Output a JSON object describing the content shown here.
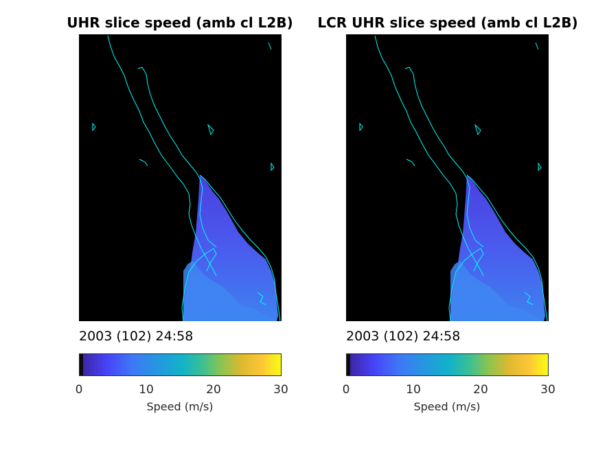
{
  "panels": [
    {
      "title": "UHR slice speed (amb cl L2B)",
      "timestamp": "2003 (102) 24:58",
      "colorbar": {
        "label": "Speed (m/s)",
        "ticks": [
          "0",
          "10",
          "20",
          "30"
        ]
      }
    },
    {
      "title": "LCR UHR slice speed (amb cl L2B)",
      "timestamp": "2003 (102) 24:58",
      "colorbar": {
        "label": "Speed (m/s)",
        "ticks": [
          "0",
          "10",
          "20",
          "30"
        ]
      }
    }
  ],
  "colors": {
    "background": "#000000",
    "coastline": "#00ffff",
    "colormap": [
      "#3e26a8",
      "#4743f8",
      "#3e78f6",
      "#2598e0",
      "#12b2c9",
      "#3abf96",
      "#8bc44f",
      "#dcb92f",
      "#fcc537",
      "#f9fb15"
    ]
  },
  "chart_data": [
    {
      "type": "heatmap",
      "title": "UHR slice speed (amb cl L2B)",
      "colorbar_label": "Speed (m/s)",
      "clim": [
        0,
        30
      ],
      "colorbar_ticks": [
        0,
        10,
        20,
        30
      ],
      "approx_speed_range": [
        2,
        8
      ]
    },
    {
      "type": "heatmap",
      "title": "LCR UHR slice speed (amb cl L2B)",
      "colorbar_label": "Speed (m/s)",
      "clim": [
        0,
        30
      ],
      "colorbar_ticks": [
        0,
        10,
        20,
        30
      ],
      "approx_speed_range": [
        2,
        8
      ]
    }
  ]
}
